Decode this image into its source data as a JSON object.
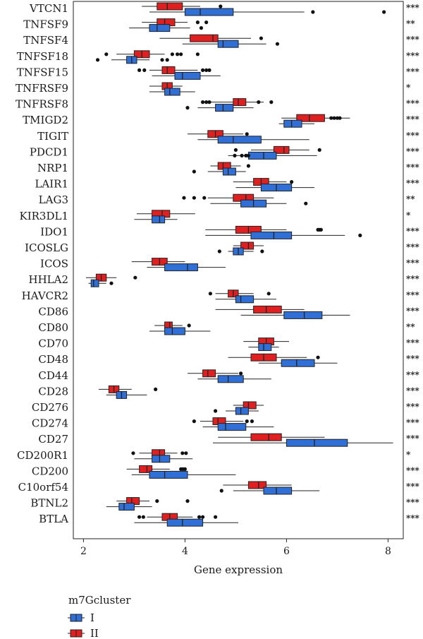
{
  "chart_data": {
    "type": "boxplot",
    "xlabel": "Gene expression",
    "xlim": [
      1.8,
      8.3
    ],
    "xticks": [
      2,
      4,
      6,
      8
    ],
    "legend": {
      "title": "m7Gcluster",
      "position": "bottom-left",
      "entries": [
        {
          "name": "I",
          "color": "#2f6fd6"
        },
        {
          "name": "II",
          "color": "#e02020"
        }
      ]
    },
    "genes": [
      {
        "name": "VTCN1",
        "sig": "***",
        "I": {
          "whisker_low": 3.3,
          "q1": 4.0,
          "median": 4.3,
          "q3": 4.95,
          "whisker_high": 6.35,
          "outliers": [
            6.52,
            7.92
          ]
        },
        "II": {
          "whisker_low": 3.15,
          "q1": 3.45,
          "median": 3.65,
          "q3": 3.95,
          "whisker_high": 4.3,
          "outliers": [
            4.7
          ]
        }
      },
      {
        "name": "TNFSF9",
        "sig": "**",
        "I": {
          "whisker_low": 2.9,
          "q1": 3.3,
          "median": 3.45,
          "q3": 3.7,
          "whisker_high": 4.1,
          "outliers": [
            4.32
          ]
        },
        "II": {
          "whisker_low": 3.15,
          "q1": 3.45,
          "median": 3.6,
          "q3": 3.8,
          "whisker_high": 4.05,
          "outliers": [
            4.25,
            4.42
          ]
        }
      },
      {
        "name": "TNFSF4",
        "sig": "***",
        "I": {
          "whisker_low": 3.95,
          "q1": 4.65,
          "median": 4.75,
          "q3": 5.05,
          "whisker_high": 5.6,
          "outliers": [
            5.82
          ]
        },
        "II": {
          "whisker_low": 3.5,
          "q1": 4.1,
          "median": 4.55,
          "q3": 4.65,
          "whisker_high": 5.3,
          "outliers": [
            5.5
          ]
        }
      },
      {
        "name": "TNFSF18",
        "sig": "***",
        "I": {
          "whisker_low": 2.55,
          "q1": 2.85,
          "median": 2.95,
          "q3": 3.05,
          "whisker_high": 3.3,
          "outliers": [
            2.28,
            3.55,
            3.65
          ]
        },
        "II": {
          "whisker_low": 2.65,
          "q1": 3.0,
          "median": 3.15,
          "q3": 3.3,
          "whisker_high": 3.6,
          "outliers": [
            2.45,
            3.75,
            3.85,
            3.92,
            4.25
          ]
        }
      },
      {
        "name": "TNFSF15",
        "sig": "***",
        "I": {
          "whisker_low": 3.35,
          "q1": 3.8,
          "median": 3.95,
          "q3": 4.3,
          "whisker_high": 4.7,
          "outliers": []
        },
        "II": {
          "whisker_low": 3.3,
          "q1": 3.55,
          "median": 3.65,
          "q3": 3.8,
          "whisker_high": 4.25,
          "outliers": [
            3.1,
            3.2,
            4.35,
            4.42,
            4.48
          ]
        }
      },
      {
        "name": "TNFRSF9",
        "sig": "*",
        "I": {
          "whisker_low": 3.3,
          "q1": 3.6,
          "median": 3.7,
          "q3": 3.9,
          "whisker_high": 4.2,
          "outliers": []
        },
        "II": {
          "whisker_low": 3.3,
          "q1": 3.55,
          "median": 3.65,
          "q3": 3.75,
          "whisker_high": 3.95,
          "outliers": []
        }
      },
      {
        "name": "TNFRSF8",
        "sig": "***",
        "I": {
          "whisker_low": 4.25,
          "q1": 4.6,
          "median": 4.75,
          "q3": 4.95,
          "whisker_high": 5.35,
          "outliers": [
            4.05
          ]
        },
        "II": {
          "whisker_low": 4.5,
          "q1": 4.95,
          "median": 5.05,
          "q3": 5.2,
          "whisker_high": 5.55,
          "outliers": [
            4.35,
            4.42,
            4.48,
            5.45,
            5.7
          ]
        }
      },
      {
        "name": "TMIGD2",
        "sig": "***",
        "I": {
          "whisker_low": 5.85,
          "q1": 5.95,
          "median": 6.1,
          "q3": 6.3,
          "whisker_high": 6.55,
          "outliers": []
        },
        "II": {
          "whisker_low": 5.9,
          "q1": 6.2,
          "median": 6.45,
          "q3": 6.75,
          "whisker_high": 7.25,
          "outliers": [
            6.88,
            6.94,
            7.0,
            7.05
          ]
        }
      },
      {
        "name": "TIGIT",
        "sig": "***",
        "I": {
          "whisker_low": 4.25,
          "q1": 4.65,
          "median": 4.95,
          "q3": 5.5,
          "whisker_high": 6.45,
          "outliers": []
        },
        "II": {
          "whisker_low": 4.05,
          "q1": 4.45,
          "median": 4.6,
          "q3": 4.75,
          "whisker_high": 5.15,
          "outliers": [
            5.22
          ]
        }
      },
      {
        "name": "PDCD1",
        "sig": "***",
        "I": {
          "whisker_low": 4.85,
          "q1": 5.25,
          "median": 5.55,
          "q3": 5.8,
          "whisker_high": 6.6,
          "outliers": [
            4.98,
            5.12,
            5.2,
            5.25
          ]
        },
        "II": {
          "whisker_low": 5.3,
          "q1": 5.75,
          "median": 5.95,
          "q3": 6.05,
          "whisker_high": 6.45,
          "outliers": [
            5.0,
            6.65
          ]
        }
      },
      {
        "name": "NRP1",
        "sig": "***",
        "I": {
          "whisker_low": 4.45,
          "q1": 4.75,
          "median": 4.85,
          "q3": 5.0,
          "whisker_high": 5.2,
          "outliers": [
            4.18
          ]
        },
        "II": {
          "whisker_low": 4.5,
          "q1": 4.65,
          "median": 4.75,
          "q3": 4.9,
          "whisker_high": 5.1,
          "outliers": [
            5.25
          ]
        }
      },
      {
        "name": "LAIR1",
        "sig": "***",
        "I": {
          "whisker_low": 5.0,
          "q1": 5.5,
          "median": 5.8,
          "q3": 6.1,
          "whisker_high": 6.55,
          "outliers": []
        },
        "II": {
          "whisker_low": 4.95,
          "q1": 5.35,
          "median": 5.5,
          "q3": 5.65,
          "whisker_high": 6.0,
          "outliers": [
            6.1
          ]
        }
      },
      {
        "name": "LAG3",
        "sig": "**",
        "I": {
          "whisker_low": 4.5,
          "q1": 5.1,
          "median": 5.35,
          "q3": 5.6,
          "whisker_high": 6.0,
          "outliers": [
            6.38
          ]
        },
        "II": {
          "whisker_low": 4.45,
          "q1": 4.95,
          "median": 5.2,
          "q3": 5.35,
          "whisker_high": 5.75,
          "outliers": [
            3.98,
            4.18,
            4.38
          ]
        }
      },
      {
        "name": "KIR3DL1",
        "sig": "*",
        "I": {
          "whisker_low": 3.0,
          "q1": 3.35,
          "median": 3.5,
          "q3": 3.6,
          "whisker_high": 3.85,
          "outliers": []
        },
        "II": {
          "whisker_low": 3.05,
          "q1": 3.35,
          "median": 3.55,
          "q3": 3.7,
          "whisker_high": 4.2,
          "outliers": []
        }
      },
      {
        "name": "IDO1",
        "sig": "***",
        "I": {
          "whisker_low": 4.4,
          "q1": 5.3,
          "median": 5.75,
          "q3": 6.1,
          "whisker_high": 7.15,
          "outliers": [
            7.45
          ]
        },
        "II": {
          "whisker_low": 4.4,
          "q1": 5.0,
          "median": 5.25,
          "q3": 5.5,
          "whisker_high": 6.0,
          "outliers": [
            6.62,
            6.65,
            6.68
          ]
        }
      },
      {
        "name": "ICOSLG",
        "sig": "***",
        "I": {
          "whisker_low": 4.85,
          "q1": 4.95,
          "median": 5.05,
          "q3": 5.15,
          "whisker_high": 5.35,
          "outliers": [
            4.68,
            5.52
          ]
        },
        "II": {
          "whisker_low": 4.95,
          "q1": 5.1,
          "median": 5.25,
          "q3": 5.35,
          "whisker_high": 5.55,
          "outliers": []
        }
      },
      {
        "name": "ICOS",
        "sig": "***",
        "I": {
          "whisker_low": 3.25,
          "q1": 3.6,
          "median": 4.05,
          "q3": 4.25,
          "whisker_high": 4.8,
          "outliers": []
        },
        "II": {
          "whisker_low": 2.95,
          "q1": 3.35,
          "median": 3.5,
          "q3": 3.65,
          "whisker_high": 4.0,
          "outliers": []
        }
      },
      {
        "name": "HHLA2",
        "sig": "***",
        "I": {
          "whisker_low": 2.1,
          "q1": 2.15,
          "median": 2.2,
          "q3": 2.3,
          "whisker_high": 2.45,
          "outliers": [
            2.55
          ]
        },
        "II": {
          "whisker_low": 2.05,
          "q1": 2.25,
          "median": 2.35,
          "q3": 2.45,
          "whisker_high": 2.65,
          "outliers": [
            3.02
          ]
        }
      },
      {
        "name": "HAVCR2",
        "sig": "***",
        "I": {
          "whisker_low": 4.6,
          "q1": 5.0,
          "median": 5.1,
          "q3": 5.35,
          "whisker_high": 5.8,
          "outliers": []
        },
        "II": {
          "whisker_low": 4.6,
          "q1": 4.85,
          "median": 4.95,
          "q3": 5.05,
          "whisker_high": 5.35,
          "outliers": [
            4.5,
            5.65
          ]
        }
      },
      {
        "name": "CD86",
        "sig": "***",
        "I": {
          "whisker_low": 5.1,
          "q1": 5.95,
          "median": 6.35,
          "q3": 6.7,
          "whisker_high": 7.25,
          "outliers": []
        },
        "II": {
          "whisker_low": 4.6,
          "q1": 5.35,
          "median": 5.6,
          "q3": 5.9,
          "whisker_high": 6.35,
          "outliers": []
        }
      },
      {
        "name": "CD80",
        "sig": "**",
        "I": {
          "whisker_low": 3.3,
          "q1": 3.6,
          "median": 3.75,
          "q3": 4.0,
          "whisker_high": 4.5,
          "outliers": []
        },
        "II": {
          "whisker_low": 3.4,
          "q1": 3.6,
          "median": 3.7,
          "q3": 3.75,
          "whisker_high": 3.95,
          "outliers": [
            4.08
          ]
        }
      },
      {
        "name": "CD70",
        "sig": "***",
        "I": {
          "whisker_low": 5.25,
          "q1": 5.45,
          "median": 5.55,
          "q3": 5.7,
          "whisker_high": 5.85,
          "outliers": []
        },
        "II": {
          "whisker_low": 5.15,
          "q1": 5.45,
          "median": 5.6,
          "q3": 5.75,
          "whisker_high": 6.05,
          "outliers": []
        }
      },
      {
        "name": "CD48",
        "sig": "***",
        "I": {
          "whisker_low": 5.45,
          "q1": 5.9,
          "median": 6.2,
          "q3": 6.55,
          "whisker_high": 7.0,
          "outliers": []
        },
        "II": {
          "whisker_low": 4.85,
          "q1": 5.3,
          "median": 5.55,
          "q3": 5.8,
          "whisker_high": 6.4,
          "outliers": [
            6.62
          ]
        }
      },
      {
        "name": "CD44",
        "sig": "***",
        "I": {
          "whisker_low": 4.25,
          "q1": 4.65,
          "median": 4.85,
          "q3": 5.15,
          "whisker_high": 5.7,
          "outliers": []
        },
        "II": {
          "whisker_low": 4.05,
          "q1": 4.35,
          "median": 4.45,
          "q3": 4.6,
          "whisker_high": 5.05,
          "outliers": [
            5.1
          ]
        }
      },
      {
        "name": "CD28",
        "sig": "***",
        "I": {
          "whisker_low": 2.45,
          "q1": 2.65,
          "median": 2.75,
          "q3": 2.85,
          "whisker_high": 3.25,
          "outliers": []
        },
        "II": {
          "whisker_low": 2.3,
          "q1": 2.5,
          "median": 2.6,
          "q3": 2.7,
          "whisker_high": 2.95,
          "outliers": [
            3.42
          ]
        }
      },
      {
        "name": "CD276",
        "sig": "***",
        "I": {
          "whisker_low": 4.8,
          "q1": 5.0,
          "median": 5.1,
          "q3": 5.25,
          "whisker_high": 5.45,
          "outliers": [
            4.6
          ]
        },
        "II": {
          "whisker_low": 4.95,
          "q1": 5.15,
          "median": 5.25,
          "q3": 5.4,
          "whisker_high": 5.55,
          "outliers": []
        }
      },
      {
        "name": "CD274",
        "sig": "***",
        "I": {
          "whisker_low": 4.35,
          "q1": 4.65,
          "median": 4.8,
          "q3": 5.2,
          "whisker_high": 5.75,
          "outliers": []
        },
        "II": {
          "whisker_low": 4.3,
          "q1": 4.55,
          "median": 4.65,
          "q3": 4.8,
          "whisker_high": 5.15,
          "outliers": [
            4.18,
            5.22,
            5.32
          ]
        }
      },
      {
        "name": "CD27",
        "sig": "***",
        "I": {
          "whisker_low": 4.55,
          "q1": 6.0,
          "median": 6.55,
          "q3": 7.2,
          "whisker_high": 8.1,
          "outliers": []
        },
        "II": {
          "whisker_low": 4.65,
          "q1": 5.3,
          "median": 5.65,
          "q3": 5.9,
          "whisker_high": 6.75,
          "outliers": []
        }
      },
      {
        "name": "CD200R1",
        "sig": "*",
        "I": {
          "whisker_low": 3.0,
          "q1": 3.35,
          "median": 3.5,
          "q3": 3.7,
          "whisker_high": 4.15,
          "outliers": []
        },
        "II": {
          "whisker_low": 3.1,
          "q1": 3.35,
          "median": 3.5,
          "q3": 3.6,
          "whisker_high": 3.85,
          "outliers": [
            2.98,
            3.95,
            4.02
          ]
        }
      },
      {
        "name": "CD200",
        "sig": "***",
        "I": {
          "whisker_low": 2.95,
          "q1": 3.3,
          "median": 3.6,
          "q3": 4.05,
          "whisker_high": 5.0,
          "outliers": []
        },
        "II": {
          "whisker_low": 2.85,
          "q1": 3.1,
          "median": 3.25,
          "q3": 3.35,
          "whisker_high": 3.7,
          "outliers": [
            3.92,
            3.96,
            4.0
          ]
        }
      },
      {
        "name": "C10orf54",
        "sig": "***",
        "I": {
          "whisker_low": 4.95,
          "q1": 5.55,
          "median": 5.8,
          "q3": 6.1,
          "whisker_high": 6.65,
          "outliers": [
            4.72
          ]
        },
        "II": {
          "whisker_low": 4.75,
          "q1": 5.25,
          "median": 5.45,
          "q3": 5.6,
          "whisker_high": 6.1,
          "outliers": []
        }
      },
      {
        "name": "BTNL2",
        "sig": "***",
        "I": {
          "whisker_low": 2.45,
          "q1": 2.7,
          "median": 2.8,
          "q3": 3.0,
          "whisker_high": 3.35,
          "outliers": []
        },
        "II": {
          "whisker_low": 2.65,
          "q1": 2.85,
          "median": 2.95,
          "q3": 3.1,
          "whisker_high": 3.3,
          "outliers": [
            3.45,
            4.05
          ]
        }
      },
      {
        "name": "BTLA",
        "sig": "***",
        "I": {
          "whisker_low": 3.0,
          "q1": 3.65,
          "median": 3.95,
          "q3": 4.35,
          "whisker_high": 5.05,
          "outliers": []
        },
        "II": {
          "whisker_low": 3.25,
          "q1": 3.55,
          "median": 3.7,
          "q3": 3.85,
          "whisker_high": 4.15,
          "outliers": [
            3.1,
            3.18,
            4.28,
            4.35,
            4.6
          ]
        }
      }
    ]
  }
}
